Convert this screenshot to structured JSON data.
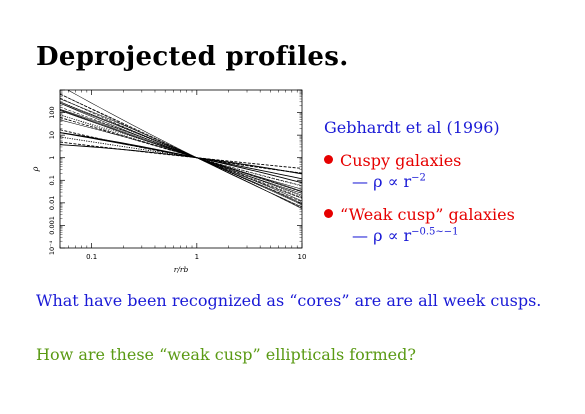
{
  "slide": {
    "title": "Deprojected profiles.",
    "citation": "Gebhardt et al (1996)",
    "bullets": [
      {
        "label": "Cuspy galaxies",
        "relation": "— ρ ∝ r",
        "exponent": "−2",
        "dot_color": "#e60000"
      },
      {
        "label": "“Weak cusp” galaxies",
        "relation": "— ρ ∝ r",
        "exponent": "−0.5∼−1",
        "dot_color": "#e60000"
      }
    ],
    "statement": "What have been recognized as “cores” are are all week cusps.",
    "question": "How are these “weak cusp” ellipticals formed?"
  },
  "colors": {
    "blue": "#1a1ad6",
    "red": "#e60000",
    "green": "#5a9a14"
  },
  "chart_data": {
    "type": "line",
    "title": "",
    "xlabel": "r/rb",
    "ylabel": "ρ",
    "xscale": "log",
    "yscale": "log",
    "xlim": [
      0.05,
      10
    ],
    "ylim": [
      0.0001,
      1000
    ],
    "x_ticks": [
      "0.1",
      "1",
      "10"
    ],
    "y_ticks": [
      "10⁻⁴",
      "0.001",
      "0.01",
      "0.1",
      "1",
      "10",
      "100"
    ],
    "pivot": {
      "x": 1,
      "y": 1
    },
    "grid": false,
    "series": [
      {
        "slope": -2.3
      },
      {
        "slope": -2.2
      },
      {
        "slope": -2.15
      },
      {
        "slope": -2.1
      },
      {
        "slope": -2.05
      },
      {
        "slope": -2.0
      },
      {
        "slope": -1.95
      },
      {
        "slope": -1.9
      },
      {
        "slope": -1.85
      },
      {
        "slope": -1.8
      },
      {
        "slope": -1.75
      },
      {
        "slope": -1.7
      },
      {
        "slope": -1.65
      },
      {
        "slope": -1.6
      },
      {
        "slope": -1.55
      },
      {
        "slope": -1.5
      },
      {
        "slope": -1.45
      },
      {
        "slope": -1.4
      },
      {
        "slope": -1.35
      },
      {
        "slope": -1.3
      },
      {
        "slope": -1.0
      },
      {
        "slope": -0.9
      },
      {
        "slope": -0.8
      },
      {
        "slope": -0.7
      },
      {
        "slope": -0.6
      },
      {
        "slope": -0.5
      }
    ]
  }
}
